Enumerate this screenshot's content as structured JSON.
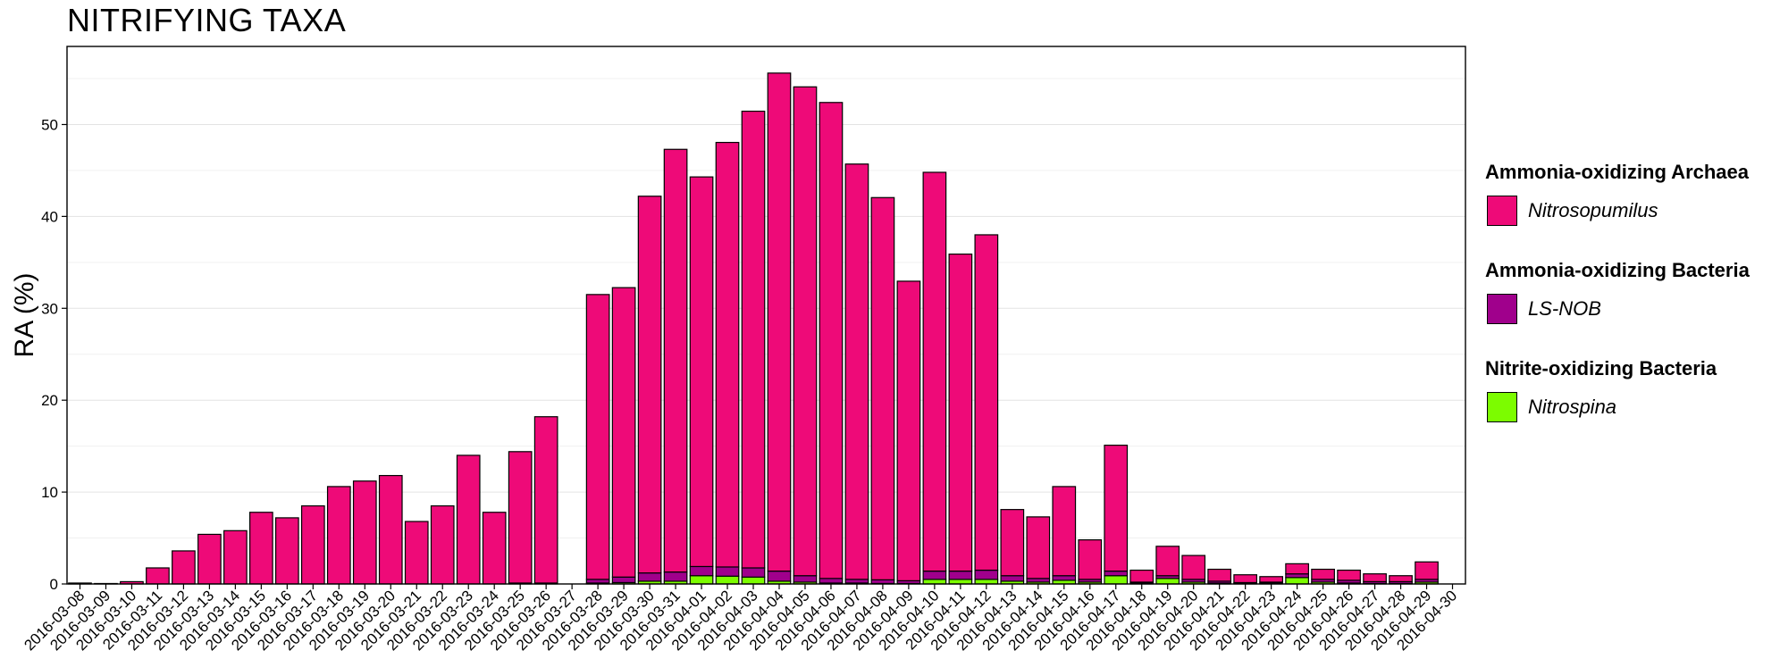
{
  "chart_data": {
    "type": "bar",
    "stacked": true,
    "title": "NITRIFYING TAXA",
    "ylabel": "RA (%)",
    "xlabel": "",
    "ylim": [
      0,
      58.5
    ],
    "yticks": [
      0,
      10,
      20,
      30,
      40,
      50
    ],
    "grid": true,
    "legend_position": "right",
    "categories": [
      "2016-03-08",
      "2016-03-09",
      "2016-03-10",
      "2016-03-11",
      "2016-03-12",
      "2016-03-13",
      "2016-03-14",
      "2016-03-15",
      "2016-03-16",
      "2016-03-17",
      "2016-03-18",
      "2016-03-19",
      "2016-03-20",
      "2016-03-21",
      "2016-03-22",
      "2016-03-23",
      "2016-03-24",
      "2016-03-25",
      "2016-03-26",
      "2016-03-27",
      "2016-03-28",
      "2016-03-29",
      "2016-03-30",
      "2016-03-31",
      "2016-04-01",
      "2016-04-02",
      "2016-04-03",
      "2016-04-04",
      "2016-04-05",
      "2016-04-06",
      "2016-04-07",
      "2016-04-08",
      "2016-04-09",
      "2016-04-10",
      "2016-04-11",
      "2016-04-12",
      "2016-04-13",
      "2016-04-14",
      "2016-04-15",
      "2016-04-16",
      "2016-04-17",
      "2016-04-18",
      "2016-04-19",
      "2016-04-20",
      "2016-04-21",
      "2016-04-22",
      "2016-04-23",
      "2016-04-24",
      "2016-04-25",
      "2016-04-26",
      "2016-04-27",
      "2016-04-28",
      "2016-04-29",
      "2016-04-30"
    ],
    "series": [
      {
        "name": "Nitrospina",
        "group": "Nitrite-oxidizing Bacteria",
        "color": "#7CFC00",
        "values": [
          0,
          0,
          0,
          0,
          0,
          0,
          0,
          0,
          0,
          0,
          0,
          0,
          0,
          0,
          0,
          0,
          0,
          0,
          0,
          0,
          0.1,
          0.15,
          0.3,
          0.3,
          0.9,
          0.85,
          0.75,
          0.3,
          0.2,
          0.1,
          0.1,
          0.05,
          0.05,
          0.5,
          0.5,
          0.5,
          0.3,
          0.2,
          0.4,
          0.2,
          0.9,
          0.1,
          0.6,
          0.2,
          0.1,
          0.05,
          0.1,
          0.7,
          0.2,
          0.1,
          0.05,
          0.05,
          0.2,
          0
        ]
      },
      {
        "name": "LS-NOB",
        "group": "Ammonia-oxidizing Bacteria",
        "color": "#A0008C",
        "values": [
          0,
          0,
          0,
          0,
          0,
          0,
          0,
          0,
          0,
          0,
          0,
          0,
          0,
          0,
          0,
          0,
          0,
          0.1,
          0.1,
          0,
          0.4,
          0.6,
          0.9,
          1.0,
          1.0,
          1.0,
          1.0,
          1.1,
          0.7,
          0.5,
          0.4,
          0.4,
          0.3,
          0.9,
          0.9,
          1.0,
          0.6,
          0.4,
          0.5,
          0.3,
          0.5,
          0.1,
          0.3,
          0.3,
          0.2,
          0.1,
          0.1,
          0.4,
          0.3,
          0.3,
          0.2,
          0.2,
          0.3,
          0
        ]
      },
      {
        "name": "Nitrosopumilus",
        "group": "Ammonia-oxidizing Archaea",
        "color": "#EE0A78",
        "values": [
          0.1,
          0.05,
          0.25,
          1.75,
          3.6,
          5.4,
          5.8,
          7.8,
          7.2,
          8.5,
          10.6,
          11.2,
          11.8,
          6.8,
          8.5,
          14.0,
          7.8,
          14.3,
          18.1,
          0,
          31.0,
          31.5,
          41.0,
          46.0,
          42.4,
          46.2,
          49.7,
          54.2,
          53.2,
          51.8,
          45.2,
          41.6,
          32.6,
          43.4,
          34.5,
          36.5,
          7.2,
          6.7,
          9.7,
          4.3,
          13.7,
          1.3,
          3.2,
          2.6,
          1.3,
          0.85,
          0.6,
          1.1,
          1.1,
          1.1,
          0.85,
          0.65,
          1.9,
          0
        ]
      }
    ],
    "legend": [
      {
        "title": "Ammonia-oxidizing Archaea",
        "items": [
          {
            "label": "Nitrosopumilus",
            "color": "#EE0A78"
          }
        ]
      },
      {
        "title": "Ammonia-oxidizing Bacteria",
        "items": [
          {
            "label": "LS-NOB",
            "color": "#A0008C"
          }
        ]
      },
      {
        "title": "Nitrite-oxidizing Bacteria",
        "items": [
          {
            "label": "Nitrospina",
            "color": "#7CFC00"
          }
        ]
      }
    ]
  }
}
